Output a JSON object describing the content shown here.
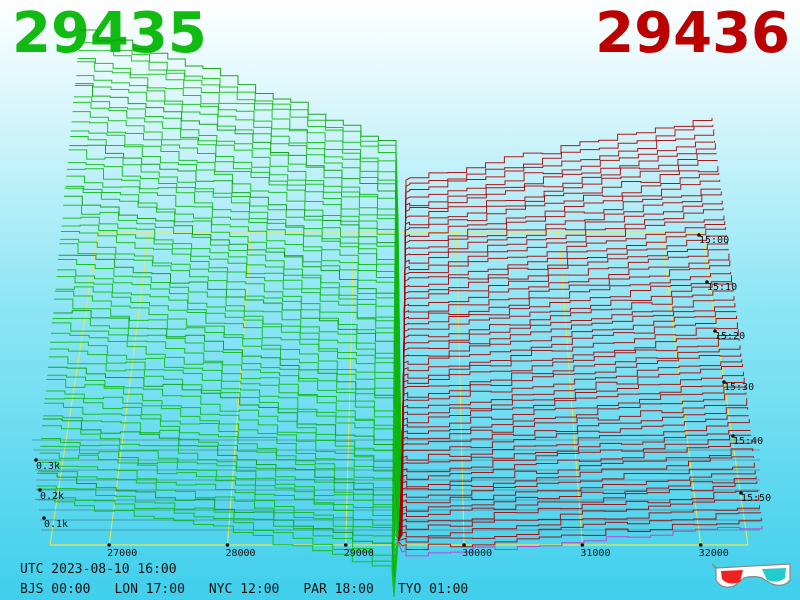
{
  "header": {
    "bid_price": "29435",
    "ask_price": "29436",
    "bid_color": "#11bb11",
    "ask_color": "#bb0000"
  },
  "footer": {
    "utc": "UTC 2023-08-10 16:00",
    "cities": [
      {
        "label": "BJS 00:00"
      },
      {
        "label": "LON 17:00"
      },
      {
        "label": "NYC 12:00"
      },
      {
        "label": "PAR 18:00"
      },
      {
        "label": "TYO 01:00"
      }
    ],
    "glasses_icon": "3d-glasses-icon"
  },
  "chart_data": {
    "type": "area",
    "title": "",
    "xlabel": "",
    "ylabel": "",
    "x_ticks": [
      "27000",
      "28000",
      "29000",
      "30000",
      "31000",
      "32000"
    ],
    "y_ticks": [
      "0.1k",
      "0.2k",
      "0.3k"
    ],
    "time_ticks": [
      "15:00",
      "15:10",
      "15:20",
      "15:30",
      "15:40",
      "15:50"
    ],
    "xlim": [
      26500,
      32400
    ],
    "mid_price": 29435.5,
    "series": [
      {
        "name": "29435",
        "side": "bid",
        "color": "#11bb11"
      },
      {
        "name": "29436",
        "side": "ask",
        "color": "#aa0000"
      }
    ],
    "depth_snapshots": 60,
    "colors": {
      "grid": "#e8e850",
      "baseline": "#444444",
      "latest_ask": "#cc33cc"
    }
  }
}
